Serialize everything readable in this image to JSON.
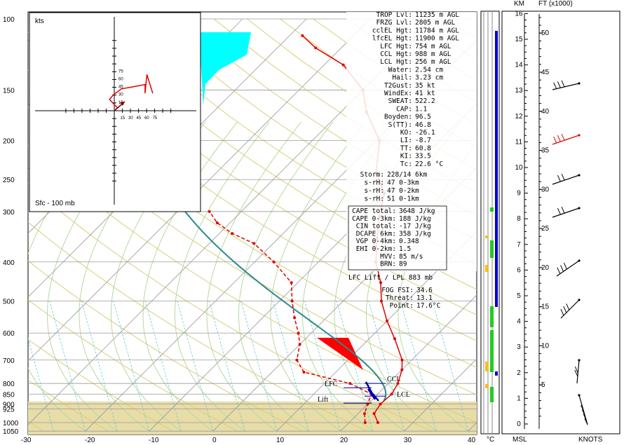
{
  "chart_data": {
    "type": "skew-t",
    "pressure_ticks": [
      "100",
      "150",
      "200",
      "250",
      "300",
      "400",
      "500",
      "600",
      "700",
      "800",
      "850",
      "900",
      "925",
      "1000",
      "1050"
    ],
    "temp_ticks": [
      "-30",
      "-20",
      "-10",
      "0",
      "10",
      "20",
      "30",
      "40"
    ],
    "temp_unit": "°C",
    "temperature_profile": [
      {
        "p": 1000,
        "t": 24.5
      },
      {
        "p": 950,
        "t": 22.5
      },
      {
        "p": 900,
        "t": 22.0
      },
      {
        "p": 850,
        "t": 22.2
      },
      {
        "p": 800,
        "t": 21.5
      },
      {
        "p": 740,
        "t": 20.0
      },
      {
        "p": 700,
        "t": 18.5
      },
      {
        "p": 620,
        "t": 14.0
      },
      {
        "p": 560,
        "t": 10.0
      },
      {
        "p": 500,
        "t": 6.0
      },
      {
        "p": 450,
        "t": 3.0
      },
      {
        "p": 400,
        "t": -1.0
      },
      {
        "p": 350,
        "t": -4.5
      },
      {
        "p": 310,
        "t": -7.5
      },
      {
        "p": 270,
        "t": -10.5
      },
      {
        "p": 240,
        "t": -15.0
      },
      {
        "p": 200,
        "t": -19.5
      },
      {
        "p": 170,
        "t": -26.0
      },
      {
        "p": 150,
        "t": -30.0
      },
      {
        "p": 130,
        "t": -37.0
      },
      {
        "p": 118,
        "t": -44.0
      },
      {
        "p": 110,
        "t": -48.0
      }
    ],
    "dewpoint_profile": [
      {
        "p": 1000,
        "t": 22.5
      },
      {
        "p": 950,
        "t": 21.0
      },
      {
        "p": 900,
        "t": 20.0
      },
      {
        "p": 850,
        "t": 19.0
      },
      {
        "p": 800,
        "t": 14.0
      },
      {
        "p": 750,
        "t": 5.0
      },
      {
        "p": 700,
        "t": 2.0
      },
      {
        "p": 640,
        "t": 0.0
      },
      {
        "p": 600,
        "t": -2.0
      },
      {
        "p": 550,
        "t": -5.0
      },
      {
        "p": 500,
        "t": -8.0
      },
      {
        "p": 450,
        "t": -11.0
      },
      {
        "p": 400,
        "t": -17.0
      },
      {
        "p": 360,
        "t": -23.0
      },
      {
        "p": 340,
        "t": -28.0
      },
      {
        "p": 320,
        "t": -32.0
      },
      {
        "p": 300,
        "t": -35.0
      }
    ],
    "parcel_lift_label": "LFC Lift / LPL 883 mb",
    "parcel_annotations": [
      "CCL",
      "LFC",
      "LCL",
      "Lift"
    ],
    "indices": [
      {
        "label": "TROP Lvl:",
        "value": "11235 m AGL"
      },
      {
        "label": "FRZG Lvl:",
        "value": "2805 m AGL"
      },
      {
        "label": "cclEL Hgt:",
        "value": "11784 m AGL"
      },
      {
        "label": "lfcEL Hgt:",
        "value": "11900 m AGL"
      },
      {
        "label": "LFC Hgt:",
        "value": "754 m AGL"
      },
      {
        "label": "CCL Hgt:",
        "value": "988 m AGL"
      },
      {
        "label": "LCL Hgt:",
        "value": "256 m AGL"
      },
      {
        "label": "Water:",
        "value": "2.54 cm"
      },
      {
        "label": "Hail:",
        "value": "3.23 cm"
      },
      {
        "label": "T2Gust:",
        "value": "35 kt"
      },
      {
        "label": "WindEx:",
        "value": "41 kt"
      },
      {
        "label": "SWEAT:",
        "value": "522.2"
      },
      {
        "label": "CAP:",
        "value": "1.1"
      },
      {
        "label": "Boyden:",
        "value": "96.5"
      },
      {
        "label": "S(TT):",
        "value": "46.8"
      },
      {
        "label": "KO:",
        "value": "-26.1"
      },
      {
        "label": "LI:",
        "value": "-8.7"
      },
      {
        "label": "TT:",
        "value": "60.8"
      },
      {
        "label": "KI:",
        "value": "33.5"
      },
      {
        "label": "Tc:",
        "value": "22.6 °C"
      }
    ],
    "storm": [
      {
        "label": "Storm:",
        "value": "228/14  6km"
      },
      {
        "label": "s-rH:",
        "value": "47  0-3km"
      },
      {
        "label": "s-rH:",
        "value": "47  0-2km"
      },
      {
        "label": "s-rH:",
        "value": "51  0-1km"
      }
    ],
    "cape_box": [
      {
        "label": "CAPE total:",
        "value": "3648 J/kg"
      },
      {
        "label": "CAPE 0-3km:",
        "value": "188 J/kg"
      },
      {
        "label": "CIN total:",
        "value": "-17 J/kg"
      },
      {
        "label": "DCAPE 6km:",
        "value": "358 J/kg"
      },
      {
        "label": "VGP 0-4km:",
        "value": "0.348"
      },
      {
        "label": "EHI 0-2km:",
        "value": "1.5"
      },
      {
        "label": "MVV:",
        "value": "85 m/s"
      },
      {
        "label": "BRN:",
        "value": "89"
      }
    ],
    "fog": [
      {
        "label": "FOG FSI:",
        "value": "34.6"
      },
      {
        "label": "Threat:",
        "value": "13.1"
      },
      {
        "label": "Point:",
        "value": "17.6°C"
      }
    ],
    "hodograph": {
      "unit_label": "kts",
      "range_label": "Sfc - 100 mb",
      "ticks_x": [
        "15",
        "30",
        "45",
        "60",
        "75"
      ],
      "ticks_y": [
        "15",
        "30",
        "45",
        "60",
        "75"
      ],
      "points": [
        [
          5,
          5
        ],
        [
          -8,
          18
        ],
        [
          -2,
          25
        ],
        [
          12,
          35
        ],
        [
          30,
          38
        ],
        [
          52,
          42
        ],
        [
          52,
          28
        ],
        [
          55,
          58
        ],
        [
          65,
          28
        ]
      ]
    },
    "km_axis": {
      "label": "KM",
      "ticks": [
        "0",
        "1",
        "2",
        "3",
        "4",
        "5",
        "6",
        "7",
        "8",
        "9",
        "10",
        "11",
        "12",
        "13",
        "14",
        "15",
        "16"
      ]
    },
    "ft_axis": {
      "label": "FT (x1000)",
      "ticks": [
        "5",
        "10",
        "15",
        "20",
        "25",
        "30",
        "35",
        "40",
        "45",
        "50"
      ]
    },
    "bottom_labels": {
      "msl": "MSL",
      "knots": "KNOTS"
    }
  }
}
